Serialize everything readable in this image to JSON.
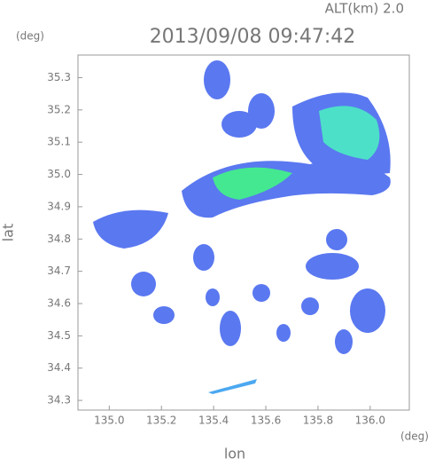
{
  "chart_data": {
    "type": "map",
    "title": "2013/09/08 09:47:42",
    "altitude_label": "ALT(km) 2.0",
    "ylabel": "lat",
    "xlabel": "lon",
    "y_unit": "(deg)",
    "x_unit": "(deg)",
    "xlim": [
      134.88,
      136.15
    ],
    "ylim": [
      34.27,
      35.37
    ],
    "xticks": [
      {
        "value": 135,
        "label": "135.0"
      },
      {
        "value": 135.2,
        "label": "135.2"
      },
      {
        "value": 135.4,
        "label": "135.4"
      },
      {
        "value": 135.6,
        "label": "135.6"
      },
      {
        "value": 135.8,
        "label": "135.8"
      },
      {
        "value": 136,
        "label": "136.0"
      }
    ],
    "yticks": [
      34.3,
      34.4,
      34.5,
      34.6,
      34.7,
      34.8,
      34.9,
      {
        "value": 35,
        "label": "35.0"
      },
      35.1,
      35.2,
      35.3
    ]
  }
}
